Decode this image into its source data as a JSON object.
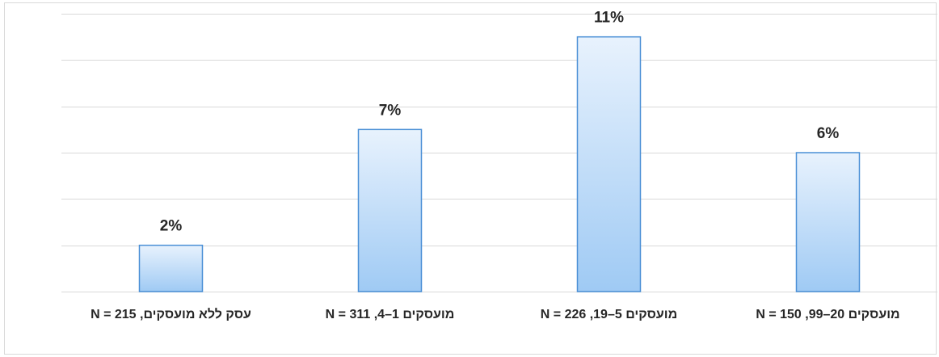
{
  "chart_data": {
    "type": "bar",
    "categories": [
      "עסק ללא מועסקים,  N = 215",
      "מועסקים 1–4, N = 311",
      "מועסקים 5–19, N = 226",
      "מועסקים 20–99, N = 150"
    ],
    "values": [
      2,
      7,
      11,
      6
    ],
    "value_labels": [
      "2%",
      "7%",
      "11%",
      "6%"
    ],
    "ylim": [
      0,
      12
    ],
    "grid": true,
    "colors": {
      "bar_top": "#e8f2fd",
      "bar_bottom": "#9fcaf4",
      "bar_border": "#4a8fd6",
      "grid": "#d9d9d9",
      "text": "#262626"
    }
  }
}
